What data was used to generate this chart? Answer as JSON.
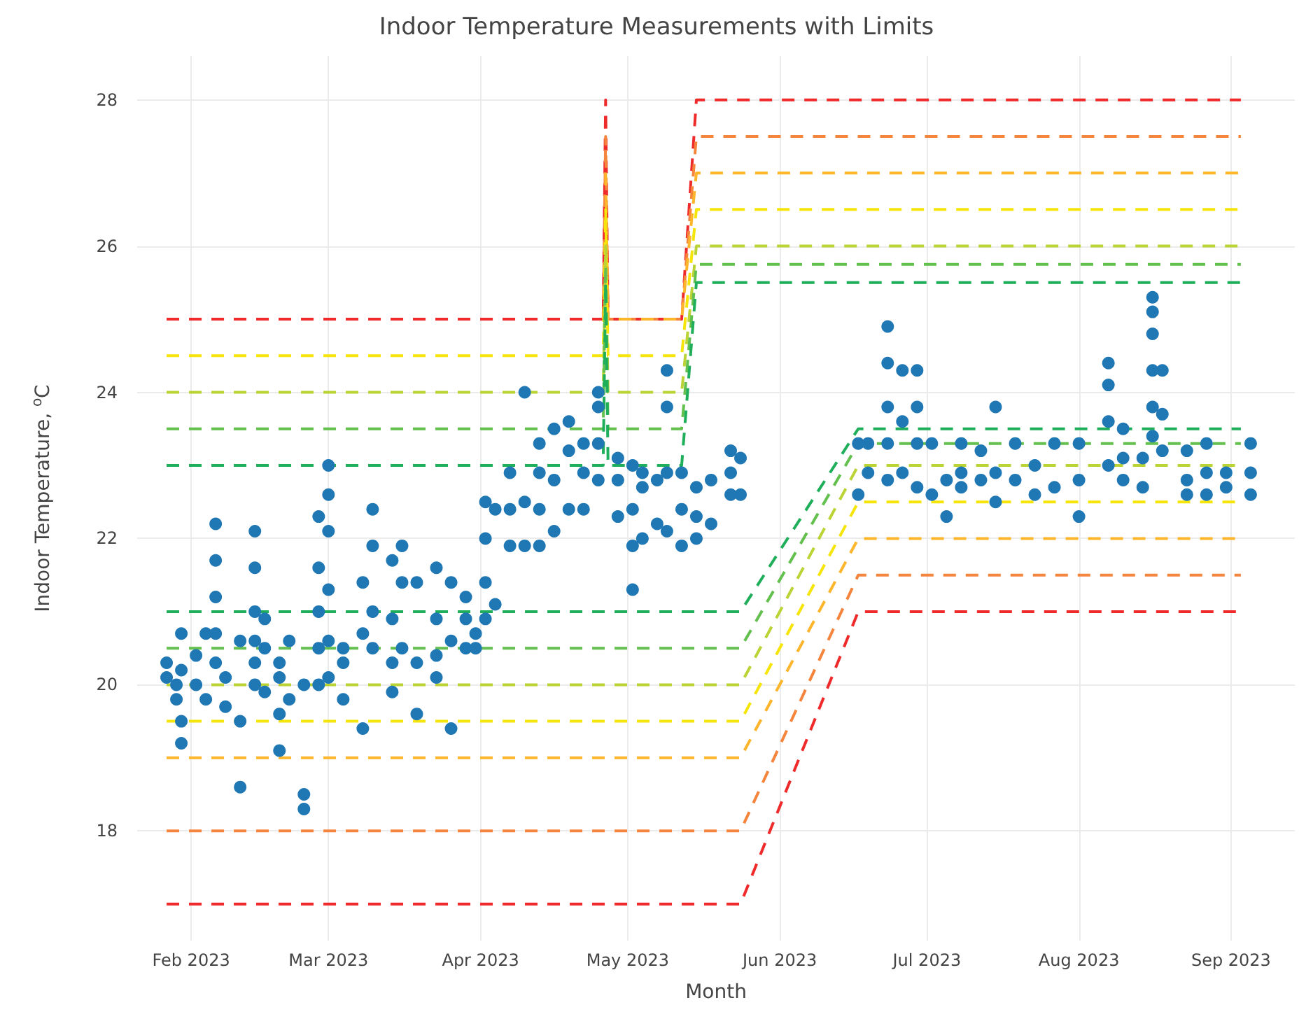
{
  "chart_data": {
    "type": "scatter",
    "title": "Indoor Temperature Measurements with Limits",
    "xlabel": "Month",
    "ylabel": "Indoor Temperature, $^{o}$C",
    "xlim": [
      "2023-01-21",
      "2023-09-14"
    ],
    "xticks": [
      {
        "value": "2023-02-01",
        "label": "Feb 2023"
      },
      {
        "value": "2023-03-01",
        "label": "Mar 2023"
      },
      {
        "value": "2023-04-01",
        "label": "Apr 2023"
      },
      {
        "value": "2023-05-01",
        "label": "May 2023"
      },
      {
        "value": "2023-06-01",
        "label": "Jun 2023"
      },
      {
        "value": "2023-07-01",
        "label": "Jul 2023"
      },
      {
        "value": "2023-08-01",
        "label": "Aug 2023"
      },
      {
        "value": "2023-09-01",
        "label": "Sep 2023"
      }
    ],
    "ylim": [
      16.5,
      28.6
    ],
    "yticks": [
      18,
      20,
      22,
      24,
      26,
      28
    ],
    "grid": true,
    "series": [
      {
        "type": "line",
        "line_style": "dashed",
        "marker": "none",
        "color": "#ee2a2a",
        "x": [
          "2023-01-27",
          "2023-04-26",
          "2023-04-26T12:00",
          "2023-04-27",
          "2023-05-12",
          "2023-05-15",
          "2023-09-03"
        ],
        "values": [
          25,
          25,
          28,
          25,
          25,
          28,
          28
        ]
      },
      {
        "type": "line",
        "line_style": "dashed",
        "marker": "none",
        "color": "#f5843c",
        "x": [
          "2023-04-26",
          "2023-04-26T12:00",
          "2023-04-27",
          "2023-05-12",
          "2023-05-15",
          "2023-09-03"
        ],
        "values": [
          25,
          27.5,
          25,
          25,
          27.5,
          27.5
        ]
      },
      {
        "type": "line",
        "line_style": "dashed",
        "marker": "none",
        "color": "#fdb52b",
        "x": [
          "2023-04-26T12:00",
          "2023-04-27",
          "2023-05-12",
          "2023-05-15",
          "2023-09-03"
        ],
        "values": [
          27,
          25,
          25,
          27,
          27
        ]
      },
      {
        "type": "line",
        "line_style": "dashed",
        "marker": "none",
        "color": "#f5e50a",
        "x": [
          "2023-01-27",
          "2023-04-26",
          "2023-04-26T12:00",
          "2023-04-27",
          "2023-05-12",
          "2023-05-15",
          "2023-09-03"
        ],
        "values": [
          24.5,
          24.5,
          26.5,
          24.5,
          24.5,
          26.5,
          26.5
        ]
      },
      {
        "type": "line",
        "line_style": "dashed",
        "marker": "none",
        "color": "#bcd335",
        "x": [
          "2023-01-27",
          "2023-04-26",
          "2023-04-26T12:00",
          "2023-04-27",
          "2023-05-12",
          "2023-05-15",
          "2023-09-03"
        ],
        "values": [
          24,
          24,
          26,
          24,
          24,
          26,
          26
        ]
      },
      {
        "type": "line",
        "line_style": "dashed",
        "marker": "none",
        "color": "#63c04e",
        "x": [
          "2023-01-27",
          "2023-04-26",
          "2023-04-26T12:00",
          "2023-04-27",
          "2023-05-12",
          "2023-05-15",
          "2023-09-03"
        ],
        "values": [
          23.5,
          23.5,
          25.75,
          23.5,
          23.5,
          25.75,
          25.75
        ]
      },
      {
        "type": "line",
        "line_style": "dashed",
        "marker": "none",
        "color": "#1fae5a",
        "x": [
          "2023-01-27",
          "2023-04-26",
          "2023-04-26T12:00",
          "2023-04-27",
          "2023-05-12",
          "2023-05-15",
          "2023-09-03"
        ],
        "values": [
          23,
          23,
          25.5,
          23,
          23,
          25.5,
          25.5
        ]
      },
      {
        "type": "line",
        "line_style": "dashed",
        "marker": "none",
        "color": "#1fae5a",
        "x": [
          "2023-01-27",
          "2023-05-24",
          "2023-06-17",
          "2023-09-03"
        ],
        "values": [
          21,
          21,
          23.5,
          23.5
        ]
      },
      {
        "type": "line",
        "line_style": "dashed",
        "marker": "none",
        "color": "#63c04e",
        "x": [
          "2023-01-27",
          "2023-05-24",
          "2023-06-17",
          "2023-09-03"
        ],
        "values": [
          20.5,
          20.5,
          23.3,
          23.3
        ]
      },
      {
        "type": "line",
        "line_style": "dashed",
        "marker": "none",
        "color": "#bcd335",
        "x": [
          "2023-01-27",
          "2023-05-24",
          "2023-06-17",
          "2023-09-03"
        ],
        "values": [
          20,
          20,
          23,
          23
        ]
      },
      {
        "type": "line",
        "line_style": "dashed",
        "marker": "none",
        "color": "#f5e50a",
        "x": [
          "2023-01-27",
          "2023-05-24",
          "2023-06-17",
          "2023-09-03"
        ],
        "values": [
          19.5,
          19.5,
          22.5,
          22.5
        ]
      },
      {
        "type": "line",
        "line_style": "dashed",
        "marker": "none",
        "color": "#fdb52b",
        "x": [
          "2023-01-27",
          "2023-05-24",
          "2023-06-17",
          "2023-09-03"
        ],
        "values": [
          19,
          19,
          22,
          22
        ]
      },
      {
        "type": "line",
        "line_style": "dashed",
        "marker": "none",
        "color": "#f5843c",
        "x": [
          "2023-01-27",
          "2023-05-24",
          "2023-06-17",
          "2023-09-03"
        ],
        "values": [
          18,
          18,
          21.5,
          21.5
        ]
      },
      {
        "type": "line",
        "line_style": "dashed",
        "marker": "none",
        "color": "#ee2a2a",
        "x": [
          "2023-01-27",
          "2023-05-24",
          "2023-06-17",
          "2023-09-03"
        ],
        "values": [
          17,
          17,
          21,
          21
        ]
      },
      {
        "marker": "circle",
        "color": "#1f77b4",
        "x": [
          "2023-01-27",
          "2023-01-27",
          "2023-01-29",
          "2023-01-29",
          "2023-01-30",
          "2023-01-30",
          "2023-01-30",
          "2023-01-30",
          "2023-02-02",
          "2023-02-02",
          "2023-02-04",
          "2023-02-04",
          "2023-02-06",
          "2023-02-06",
          "2023-02-06",
          "2023-02-06",
          "2023-02-06",
          "2023-02-08",
          "2023-02-08",
          "2023-02-11",
          "2023-02-11",
          "2023-02-11",
          "2023-02-14",
          "2023-02-14",
          "2023-02-14",
          "2023-02-14",
          "2023-02-14",
          "2023-02-14",
          "2023-02-16",
          "2023-02-16",
          "2023-02-16",
          "2023-02-19",
          "2023-02-19",
          "2023-02-19",
          "2023-02-19",
          "2023-02-21",
          "2023-02-21",
          "2023-02-24",
          "2023-02-24",
          "2023-02-24",
          "2023-02-27",
          "2023-02-27",
          "2023-02-27",
          "2023-02-27",
          "2023-02-27",
          "2023-03-01",
          "2023-03-01",
          "2023-03-01",
          "2023-03-01",
          "2023-03-01",
          "2023-03-01",
          "2023-03-04",
          "2023-03-04",
          "2023-03-04",
          "2023-03-08",
          "2023-03-08",
          "2023-03-08",
          "2023-03-10",
          "2023-03-10",
          "2023-03-10",
          "2023-03-10",
          "2023-03-14",
          "2023-03-14",
          "2023-03-14",
          "2023-03-14",
          "2023-03-16",
          "2023-03-16",
          "2023-03-16",
          "2023-03-19",
          "2023-03-19",
          "2023-03-19",
          "2023-03-23",
          "2023-03-23",
          "2023-03-23",
          "2023-03-23",
          "2023-03-26",
          "2023-03-26",
          "2023-03-26",
          "2023-03-29",
          "2023-03-29",
          "2023-03-29",
          "2023-03-31",
          "2023-03-31",
          "2023-04-02",
          "2023-04-02",
          "2023-04-02",
          "2023-04-02",
          "2023-04-04",
          "2023-04-04",
          "2023-04-07",
          "2023-04-07",
          "2023-04-07",
          "2023-04-10",
          "2023-04-10",
          "2023-04-10",
          "2023-04-13",
          "2023-04-13",
          "2023-04-13",
          "2023-04-13",
          "2023-04-16",
          "2023-04-16",
          "2023-04-16",
          "2023-04-19",
          "2023-04-19",
          "2023-04-19",
          "2023-04-22",
          "2023-04-22",
          "2023-04-22",
          "2023-04-25",
          "2023-04-25",
          "2023-04-25",
          "2023-04-25",
          "2023-04-29",
          "2023-04-29",
          "2023-04-29",
          "2023-05-02",
          "2023-05-02",
          "2023-05-02",
          "2023-05-02",
          "2023-05-04",
          "2023-05-04",
          "2023-05-04",
          "2023-05-07",
          "2023-05-07",
          "2023-05-09",
          "2023-05-09",
          "2023-05-09",
          "2023-05-09",
          "2023-05-12",
          "2023-05-12",
          "2023-05-12",
          "2023-05-15",
          "2023-05-15",
          "2023-05-15",
          "2023-05-18",
          "2023-05-18",
          "2023-05-22",
          "2023-05-22",
          "2023-05-22",
          "2023-05-24",
          "2023-05-24",
          "2023-06-17",
          "2023-06-17",
          "2023-06-19",
          "2023-06-19",
          "2023-06-23",
          "2023-06-23",
          "2023-06-23",
          "2023-06-23",
          "2023-06-23",
          "2023-06-26",
          "2023-06-26",
          "2023-06-26",
          "2023-06-29",
          "2023-06-29",
          "2023-06-29",
          "2023-06-29",
          "2023-07-02",
          "2023-07-02",
          "2023-07-05",
          "2023-07-05",
          "2023-07-08",
          "2023-07-08",
          "2023-07-08",
          "2023-07-12",
          "2023-07-12",
          "2023-07-15",
          "2023-07-15",
          "2023-07-15",
          "2023-07-19",
          "2023-07-19",
          "2023-07-23",
          "2023-07-23",
          "2023-07-27",
          "2023-07-27",
          "2023-08-01",
          "2023-08-01",
          "2023-08-01",
          "2023-08-07",
          "2023-08-07",
          "2023-08-07",
          "2023-08-07",
          "2023-08-10",
          "2023-08-10",
          "2023-08-10",
          "2023-08-14",
          "2023-08-14",
          "2023-08-16",
          "2023-08-16",
          "2023-08-16",
          "2023-08-16",
          "2023-08-16",
          "2023-08-16",
          "2023-08-18",
          "2023-08-18",
          "2023-08-18",
          "2023-08-23",
          "2023-08-23",
          "2023-08-23",
          "2023-08-27",
          "2023-08-27",
          "2023-08-27",
          "2023-08-31",
          "2023-08-31",
          "2023-09-05",
          "2023-09-05",
          "2023-09-05"
        ],
        "values": [
          20.3,
          20.1,
          20.0,
          19.8,
          19.5,
          19.2,
          20.2,
          20.7,
          20.4,
          20.0,
          19.8,
          20.7,
          22.2,
          21.7,
          21.2,
          20.7,
          20.3,
          20.1,
          19.7,
          18.6,
          19.5,
          20.6,
          22.1,
          21.6,
          21.0,
          20.6,
          20.3,
          20.0,
          20.9,
          20.5,
          19.9,
          20.1,
          19.6,
          19.1,
          20.3,
          19.8,
          20.6,
          18.5,
          18.3,
          20.0,
          22.3,
          21.6,
          21.0,
          20.5,
          20.0,
          23.0,
          22.6,
          22.1,
          21.3,
          20.6,
          20.1,
          20.3,
          20.5,
          19.8,
          19.4,
          20.7,
          21.4,
          22.4,
          21.9,
          21.0,
          20.5,
          21.7,
          20.9,
          20.3,
          19.9,
          21.9,
          21.4,
          20.5,
          21.4,
          20.3,
          19.6,
          21.6,
          20.9,
          20.4,
          20.1,
          21.4,
          20.6,
          19.4,
          21.2,
          20.9,
          20.5,
          20.7,
          20.5,
          22.5,
          22.0,
          21.4,
          20.9,
          21.1,
          22.4,
          22.9,
          22.4,
          21.9,
          24.0,
          22.5,
          21.9,
          23.3,
          22.9,
          22.4,
          21.9,
          23.5,
          22.8,
          22.1,
          23.6,
          23.2,
          22.4,
          23.3,
          22.9,
          22.4,
          24.0,
          23.8,
          22.8,
          23.3,
          22.8,
          22.3,
          23.1,
          21.3,
          21.9,
          22.4,
          23.0,
          22.0,
          22.9,
          22.7,
          22.2,
          22.8,
          24.3,
          23.8,
          22.9,
          22.1,
          22.4,
          22.9,
          21.9,
          22.7,
          22.3,
          22.0,
          22.8,
          22.2,
          22.9,
          23.2,
          22.6,
          22.6,
          23.1,
          23.3,
          22.6,
          22.9,
          23.3,
          24.9,
          24.4,
          23.8,
          23.3,
          22.8,
          24.3,
          23.6,
          22.9,
          24.3,
          23.8,
          23.3,
          22.7,
          23.3,
          22.6,
          22.3,
          22.8,
          22.7,
          23.3,
          22.9,
          22.8,
          23.2,
          22.5,
          22.9,
          23.8,
          22.8,
          23.3,
          22.6,
          23.0,
          22.7,
          23.3,
          22.8,
          22.3,
          23.3,
          24.4,
          24.1,
          23.6,
          23.0,
          23.5,
          22.8,
          23.1,
          23.1,
          22.7,
          25.3,
          25.1,
          24.8,
          24.3,
          23.8,
          23.4,
          24.3,
          23.7,
          23.2,
          22.8,
          22.6,
          23.2,
          22.9,
          23.3,
          22.6,
          22.7,
          22.9,
          23.3,
          22.9,
          22.6
        ]
      }
    ]
  }
}
